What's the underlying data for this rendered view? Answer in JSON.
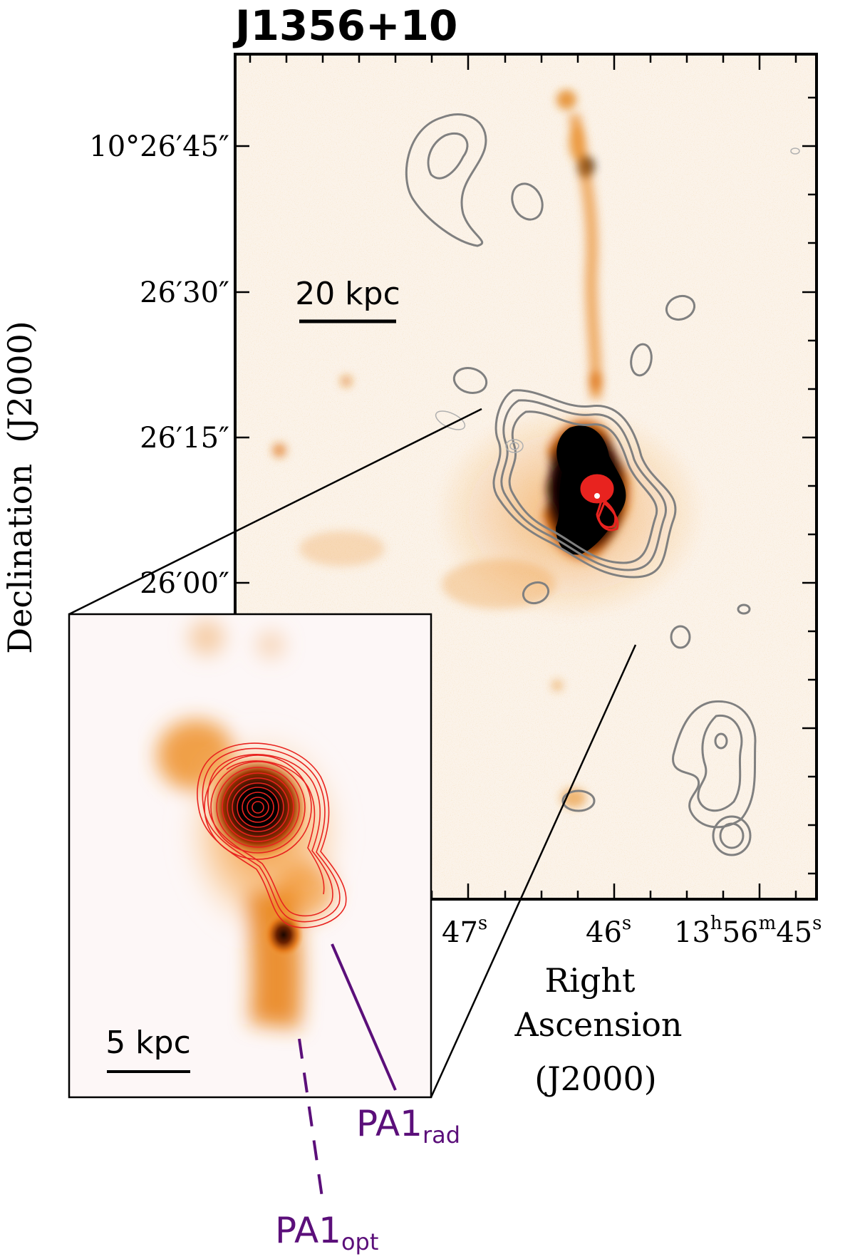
{
  "figure": {
    "title": "J1356+10",
    "y_axis_label": "Declination  (J2000)",
    "x_axis_label_lines": [
      "Right",
      "Ascension",
      "(J2000)"
    ],
    "dec_ticks": [
      "10°26′45″",
      "26′30″",
      "26′15″",
      "26′00″"
    ],
    "ra_ticks": [
      {
        "base": "47",
        "sup": "s"
      },
      {
        "base": "46",
        "sup": "s"
      },
      {
        "base": "13",
        "sup_h": "h",
        "mid": "56",
        "sup_m": "m",
        "end": "45",
        "sup_s": "s"
      }
    ],
    "main_scalebar": "20 kpc",
    "inset_scalebar": "5 kpc",
    "pa_rad": {
      "base": "PA1",
      "sub": "rad"
    },
    "pa_opt": {
      "base": "PA1",
      "sub": "opt"
    },
    "colors": {
      "radio_contour_grey": "#808080",
      "radio_contour_red": "#e8231f",
      "pa_lines": "#5b0f7a",
      "axes": "#000000"
    }
  }
}
